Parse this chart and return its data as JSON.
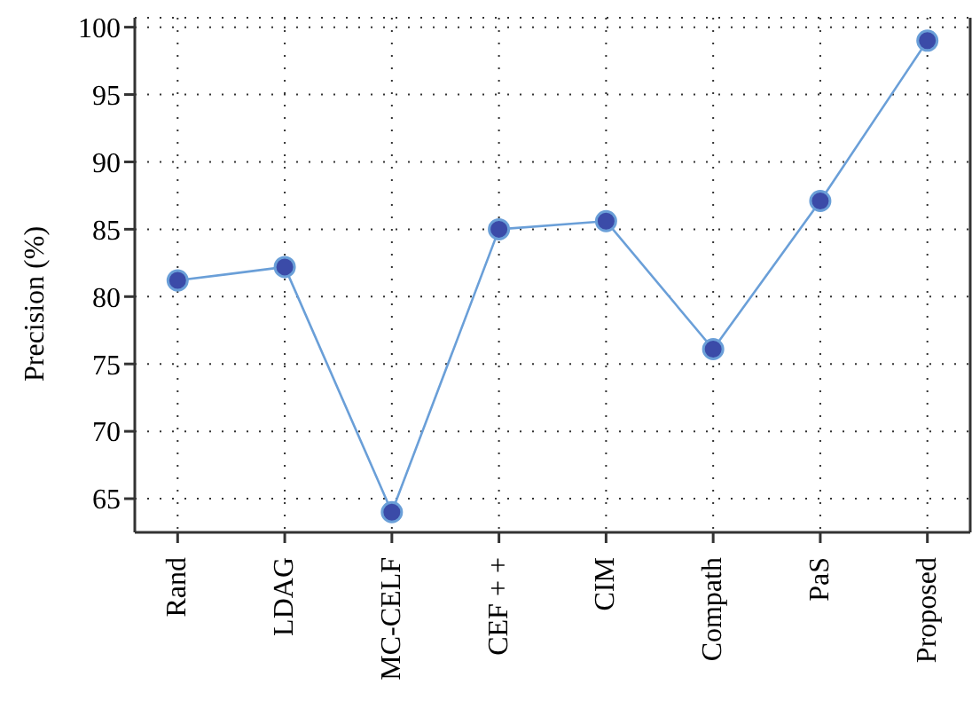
{
  "chart_data": {
    "type": "line",
    "ylabel": "Precision (%)",
    "categories": [
      "Rand",
      "LDAG",
      "MC-CELF",
      "CEF + +",
      "CIM",
      "Compath",
      "PaS",
      "Proposed"
    ],
    "series": [
      {
        "color": "#6a9fd8",
        "values": [
          81.2,
          82.2,
          64,
          85,
          85.6,
          76.1,
          87.1,
          99
        ]
      }
    ],
    "ylim": [
      62.5,
      100.7
    ],
    "yticks": [
      65,
      70,
      75,
      80,
      85,
      90,
      95,
      100
    ],
    "grid": true,
    "marker": "circle",
    "line_style": "solid"
  }
}
